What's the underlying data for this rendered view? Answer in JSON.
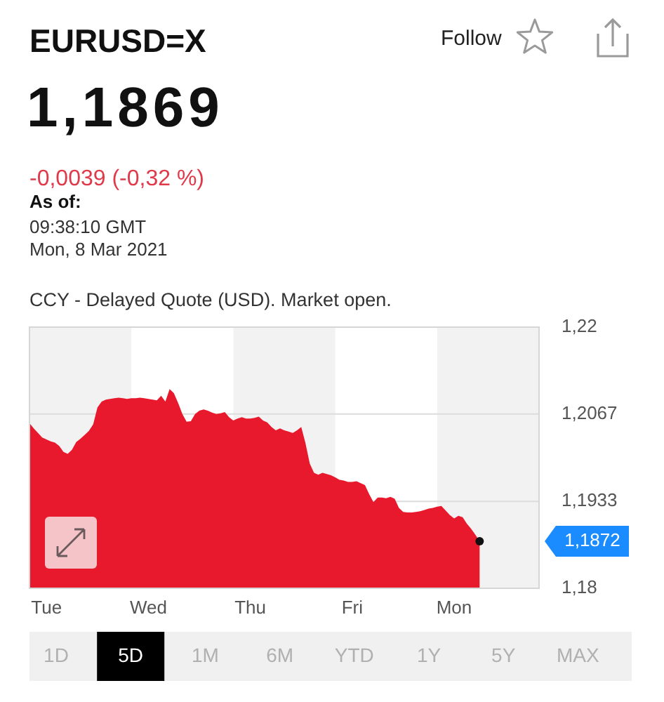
{
  "chart_data": {
    "type": "area",
    "title": "EURUSD=X",
    "subtitle": "1,1869",
    "categories": [
      null,
      null,
      null,
      null,
      "Tue",
      null,
      null,
      null,
      null,
      null,
      null,
      null,
      null,
      null,
      null,
      null,
      null,
      null,
      null,
      null,
      null,
      null,
      null,
      null,
      null,
      null,
      null,
      null,
      "Wed",
      null,
      null,
      null,
      null,
      null,
      null,
      null,
      null,
      null,
      null,
      null,
      null,
      null,
      null,
      null,
      null,
      null,
      null,
      null,
      null,
      null,
      null,
      null,
      "Thu",
      null,
      null,
      null,
      null,
      null,
      null,
      null,
      null,
      null,
      null,
      null,
      null,
      null,
      null,
      null,
      null,
      null,
      null,
      null,
      null,
      null,
      null,
      null,
      "Fri",
      null,
      null,
      null,
      null,
      null,
      null,
      null,
      null,
      null,
      null,
      null,
      null,
      null,
      null,
      null,
      null,
      null,
      null,
      null,
      null,
      null,
      null,
      null,
      "Mon",
      null,
      null,
      null,
      null,
      null,
      null,
      null,
      null,
      null,
      null,
      null,
      null,
      null,
      null,
      null,
      null,
      null,
      null,
      null
    ],
    "values": [
      1.2053,
      1.2045,
      1.2038,
      1.2031,
      1.2028,
      1.2025,
      1.2023,
      1.2018,
      1.2009,
      1.2006,
      1.2012,
      1.2024,
      1.2029,
      1.2035,
      1.2041,
      1.2051,
      1.2077,
      1.2086,
      1.2089,
      1.209,
      1.2091,
      1.2092,
      1.2091,
      1.209,
      1.2091,
      1.2091,
      1.2092,
      1.2091,
      1.209,
      1.2089,
      1.2088,
      1.2095,
      1.2086,
      1.2105,
      1.2099,
      1.2084,
      1.2067,
      1.2055,
      1.2056,
      1.2067,
      1.2072,
      1.2074,
      1.2072,
      1.2069,
      1.2067,
      1.2068,
      1.207,
      1.2062,
      1.2057,
      1.206,
      1.2062,
      1.206,
      1.206,
      1.2061,
      1.2063,
      1.2057,
      1.2054,
      1.2047,
      1.2042,
      1.2045,
      1.2042,
      1.204,
      1.2038,
      1.2042,
      1.2047,
      1.2022,
      1.1991,
      1.1977,
      1.1974,
      1.1977,
      1.1975,
      1.1973,
      1.197,
      1.1966,
      1.1965,
      1.1963,
      1.1963,
      1.1964,
      1.1961,
      1.1958,
      1.1944,
      1.1932,
      1.1939,
      1.1939,
      1.1938,
      1.194,
      1.1937,
      1.1923,
      1.1917,
      1.1916,
      1.1916,
      1.1917,
      1.1918,
      1.192,
      1.1922,
      1.1923,
      1.1925,
      1.1926,
      1.1919,
      1.1912,
      1.1907,
      1.1911,
      1.1909,
      1.1899,
      1.1891,
      1.1882,
      1.1872,
      null,
      null,
      null,
      null,
      null,
      null,
      null,
      null,
      null,
      null,
      null,
      null,
      null
    ],
    "color": "#e8192c",
    "ylim": [
      1.18,
      1.22
    ],
    "yticks": [
      {
        "value": 1.18,
        "label": "1,18"
      },
      {
        "value": 1.1933,
        "label": "1,1933"
      },
      {
        "value": 1.2067,
        "label": "1,2067"
      },
      {
        "value": 1.22,
        "label": "1,22"
      }
    ],
    "grid": "y",
    "annotations": [
      "-0,0039 (-0,32 %)",
      "As of:",
      "09:38:10 GMT",
      "Mon, 8 Mar 2021",
      "CCY - Delayed Quote (USD). Market open.",
      "Follow",
      "1,1872",
      "1D",
      "5D",
      "1M",
      "6M",
      "YTD",
      "1Y",
      "5Y",
      "MAX"
    ]
  }
}
